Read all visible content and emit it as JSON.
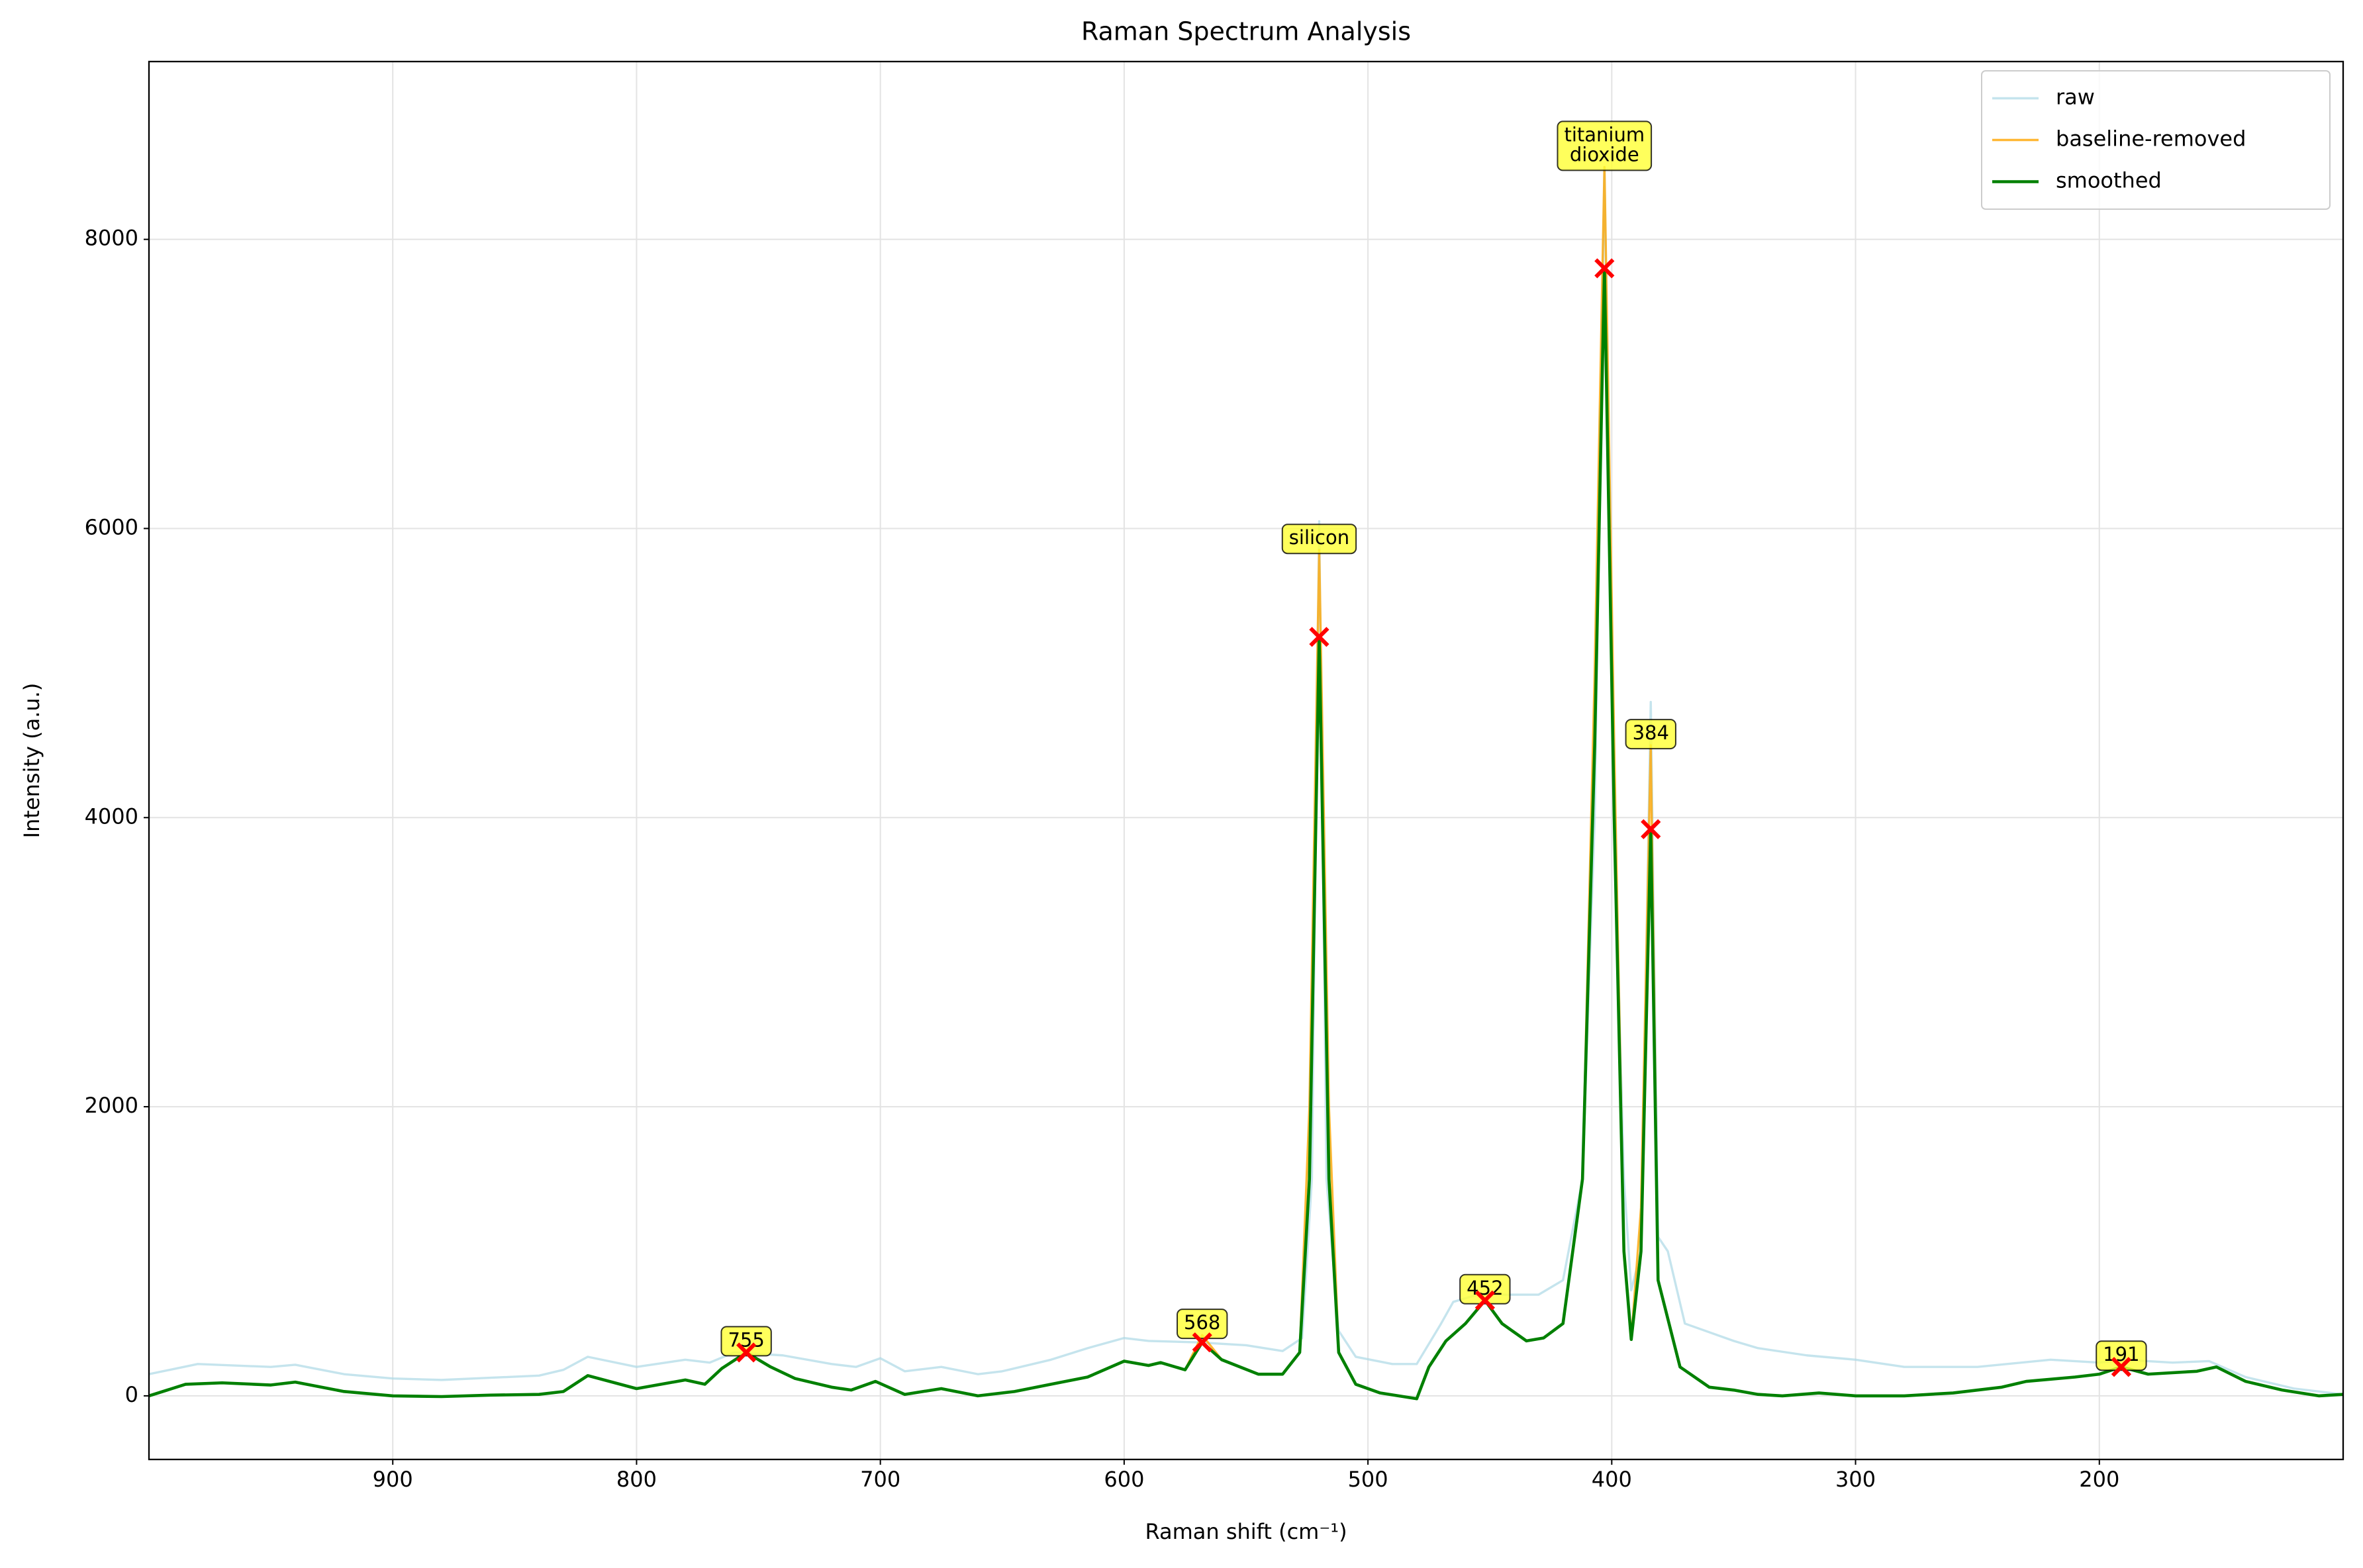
{
  "chart_data": {
    "type": "line",
    "title": "Raman Spectrum Analysis",
    "xlabel": "Raman shift (cm⁻¹)",
    "ylabel": "Intensity (a.u.)",
    "xlim": [
      1000,
      100
    ],
    "ylim": [
      -440,
      9230
    ],
    "xticks": [
      900,
      800,
      700,
      600,
      500,
      400,
      300,
      200
    ],
    "yticks": [
      0,
      2000,
      4000,
      6000,
      8000
    ],
    "grid": true,
    "legend": "upper right",
    "series": [
      {
        "name": "raw",
        "color": "#add8e6",
        "x": [
          1000,
          980,
          950,
          940,
          920,
          900,
          880,
          860,
          840,
          830,
          820,
          800,
          780,
          770,
          760,
          750,
          740,
          720,
          710,
          700,
          690,
          675,
          660,
          650,
          630,
          615,
          600,
          590,
          570,
          550,
          535,
          527,
          523,
          520,
          517,
          512,
          505,
          490,
          480,
          470,
          465,
          455,
          440,
          430,
          420,
          412,
          407,
          403,
          399,
          395,
          392,
          388,
          384,
          381,
          377,
          370,
          350,
          340,
          320,
          300,
          280,
          250,
          220,
          200,
          190,
          170,
          155,
          140,
          120,
          100
        ],
        "values": [
          150,
          220,
          200,
          215,
          150,
          120,
          110,
          125,
          140,
          180,
          270,
          200,
          250,
          230,
          300,
          290,
          280,
          220,
          200,
          260,
          170,
          200,
          150,
          170,
          250,
          330,
          400,
          380,
          370,
          350,
          310,
          400,
          1500,
          6050,
          1500,
          450,
          270,
          220,
          220,
          500,
          650,
          700,
          700,
          700,
          800,
          1500,
          4000,
          8500,
          4000,
          1500,
          730,
          1000,
          4800,
          1100,
          1000,
          500,
          380,
          330,
          280,
          250,
          200,
          200,
          250,
          230,
          250,
          230,
          240,
          130,
          50,
          10
        ]
      },
      {
        "name": "baseline-removed",
        "color": "#ffa500",
        "x": [
          1000,
          985,
          970,
          950,
          940,
          920,
          900,
          880,
          860,
          840,
          830,
          820,
          800,
          780,
          772,
          765,
          755,
          745,
          735,
          720,
          712,
          702,
          690,
          675,
          660,
          645,
          630,
          615,
          600,
          590,
          585,
          575,
          568,
          560,
          545,
          535,
          528,
          524,
          520,
          516,
          512,
          505,
          495,
          480,
          475,
          468,
          460,
          452,
          445,
          435,
          428,
          420,
          412,
          407,
          403,
          399,
          395,
          392,
          388,
          384,
          381,
          378,
          372,
          360,
          350,
          340,
          330,
          315,
          300,
          280,
          260,
          240,
          230,
          210,
          200,
          191,
          180,
          160,
          152,
          140,
          125,
          110,
          100
        ],
        "values": [
          0,
          80,
          90,
          75,
          95,
          30,
          0,
          -5,
          5,
          10,
          30,
          140,
          50,
          110,
          80,
          190,
          300,
          200,
          120,
          60,
          40,
          100,
          10,
          50,
          0,
          30,
          80,
          130,
          240,
          210,
          230,
          180,
          420,
          250,
          150,
          150,
          300,
          2000,
          5850,
          2000,
          300,
          80,
          20,
          -20,
          200,
          380,
          500,
          660,
          500,
          380,
          400,
          500,
          1500,
          5000,
          8500,
          4500,
          1000,
          390,
          1300,
          4500,
          800,
          600,
          200,
          60,
          40,
          10,
          0,
          20,
          0,
          0,
          20,
          60,
          100,
          130,
          150,
          200,
          150,
          170,
          200,
          100,
          40,
          0,
          10
        ]
      },
      {
        "name": "smoothed",
        "color": "#008000",
        "x": [
          1000,
          985,
          970,
          950,
          940,
          920,
          900,
          880,
          860,
          840,
          830,
          820,
          800,
          780,
          772,
          765,
          755,
          745,
          735,
          720,
          712,
          702,
          690,
          675,
          660,
          645,
          630,
          615,
          600,
          590,
          585,
          575,
          568,
          560,
          545,
          535,
          528,
          524,
          520,
          516,
          512,
          505,
          495,
          480,
          475,
          468,
          460,
          452,
          445,
          435,
          428,
          420,
          412,
          407,
          403,
          399,
          395,
          392,
          388,
          384,
          381,
          378,
          372,
          360,
          350,
          340,
          330,
          315,
          300,
          280,
          260,
          240,
          230,
          210,
          200,
          191,
          180,
          160,
          152,
          140,
          125,
          110,
          100
        ],
        "values": [
          0,
          80,
          90,
          75,
          95,
          30,
          0,
          -5,
          5,
          10,
          30,
          140,
          50,
          110,
          80,
          190,
          300,
          200,
          120,
          60,
          40,
          100,
          10,
          50,
          0,
          30,
          80,
          130,
          240,
          210,
          230,
          180,
          370,
          250,
          150,
          150,
          300,
          1500,
          5250,
          1500,
          300,
          80,
          20,
          -20,
          200,
          380,
          500,
          660,
          500,
          380,
          400,
          500,
          1500,
          4500,
          7800,
          4000,
          1000,
          390,
          1000,
          3920,
          800,
          600,
          200,
          60,
          40,
          10,
          0,
          20,
          0,
          0,
          20,
          60,
          100,
          130,
          150,
          200,
          150,
          170,
          200,
          100,
          40,
          0,
          10
        ]
      }
    ],
    "peaks": {
      "x": [
        755,
        568,
        520,
        452,
        403,
        384,
        191
      ],
      "y": [
        300,
        370,
        5250,
        660,
        7800,
        3920,
        200
      ],
      "labels": [
        [
          "755"
        ],
        [
          "568"
        ],
        [
          "silicon"
        ],
        [
          "452"
        ],
        [
          "titanium",
          "dioxide"
        ],
        [
          "384"
        ],
        [
          "191"
        ]
      ],
      "color": "#ff0000",
      "label_color": "#ffff33"
    }
  }
}
